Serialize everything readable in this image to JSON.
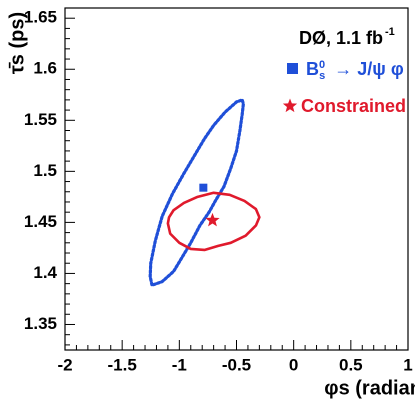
{
  "chart_data": {
    "type": "scatter",
    "title": "",
    "xlabel": "φs (radians)",
    "ylabel": "τ̄s (ps)",
    "xlim": [
      -2,
      1
    ],
    "ylim": [
      1.325,
      1.66
    ],
    "x_ticks": [
      -2,
      -1.5,
      -1,
      -0.5,
      0,
      0.5,
      1
    ],
    "x_tick_labels": [
      "-2",
      "-1.5",
      "-1",
      "-0.5",
      "0",
      "0.5",
      "1"
    ],
    "y_ticks": [
      1.35,
      1.4,
      1.45,
      1.5,
      1.55,
      1.6,
      1.65
    ],
    "y_tick_labels": [
      "1.35",
      "1.4",
      "1.45",
      "1.5",
      "1.55",
      "1.6",
      "1.65"
    ],
    "annotation": {
      "experiment": "DØ, 1.1 fb",
      "lumi_exponent": "-1"
    },
    "legend": {
      "placement": "top-right",
      "entries": [
        {
          "name": "B_s^0 → J/ψ φ",
          "marker": "square",
          "color": "#1f4fd8",
          "style": "dotted"
        },
        {
          "name": "Constrained",
          "marker": "star",
          "color": "#e01a2c",
          "style": "solid"
        }
      ]
    },
    "series": [
      {
        "name": "B_s^0 → J/ψ φ",
        "type": "contour",
        "color": "#1f4fd8",
        "line_style": "dotted",
        "central_point": {
          "x": -0.79,
          "y": 1.484
        },
        "contour": {
          "x": [
            -1.225,
            -1.15,
            -1.05,
            -0.98,
            -0.9,
            -0.82,
            -0.74,
            -0.68,
            -0.61,
            -0.55,
            -0.5,
            -0.47,
            -0.45,
            -0.44,
            -0.45,
            -0.5,
            -0.6,
            -0.7,
            -0.78,
            -0.87,
            -0.96,
            -1.06,
            -1.15,
            -1.21,
            -1.25,
            -1.255,
            -1.24
          ],
          "y": [
            1.389,
            1.392,
            1.402,
            1.415,
            1.43,
            1.447,
            1.46,
            1.472,
            1.485,
            1.503,
            1.52,
            1.54,
            1.556,
            1.566,
            1.57,
            1.568,
            1.558,
            1.545,
            1.532,
            1.515,
            1.498,
            1.478,
            1.456,
            1.432,
            1.41,
            1.397,
            1.389
          ]
        }
      },
      {
        "name": "Constrained",
        "type": "contour",
        "color": "#e01a2c",
        "line_style": "solid",
        "central_point": {
          "x": -0.71,
          "y": 1.452
        },
        "contour": {
          "x": [
            -1.1,
            -1.08,
            -1.0,
            -0.9,
            -0.78,
            -0.66,
            -0.55,
            -0.42,
            -0.33,
            -0.3,
            -0.33,
            -0.43,
            -0.56,
            -0.7,
            -0.84,
            -0.96,
            -1.05,
            -1.09,
            -1.1
          ],
          "y": [
            1.449,
            1.439,
            1.43,
            1.424,
            1.423,
            1.427,
            1.43,
            1.437,
            1.447,
            1.455,
            1.463,
            1.471,
            1.477,
            1.479,
            1.475,
            1.469,
            1.462,
            1.455,
            1.449
          ]
        }
      }
    ],
    "grid": false
  }
}
